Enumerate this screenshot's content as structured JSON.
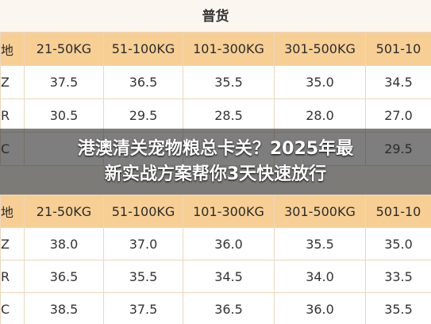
{
  "section_title": "普货",
  "tables": [
    {
      "header": [
        "地",
        "21-50KG",
        "51-100KG",
        "101-300KG",
        "301-500KG",
        "501-10"
      ],
      "rows": [
        [
          "Z",
          "37.5",
          "36.5",
          "35.5",
          "35.0",
          "34.5"
        ],
        [
          "R",
          "30.5",
          "29.5",
          "28.5",
          "28.0",
          "27.0"
        ],
        [
          "C",
          null,
          null,
          null,
          null,
          "29.5"
        ]
      ]
    },
    {
      "header": [
        "地",
        "21-50KG",
        "51-100KG",
        "101-300KG",
        "301-500KG",
        "501-10"
      ],
      "rows": [
        [
          "Z",
          "38.0",
          "37.0",
          "36.0",
          "35.5",
          "35.0"
        ],
        [
          "R",
          "36.5",
          "35.5",
          "34.5",
          "34.0",
          "33.5"
        ],
        [
          "C",
          "38.5",
          "37.5",
          "36.5",
          "36.0",
          "35.5"
        ]
      ]
    }
  ],
  "overlay": {
    "lines": [
      "港澳清关宠物粮总卡关？2025年最",
      "新实战方案帮你3天快速放行"
    ]
  }
}
